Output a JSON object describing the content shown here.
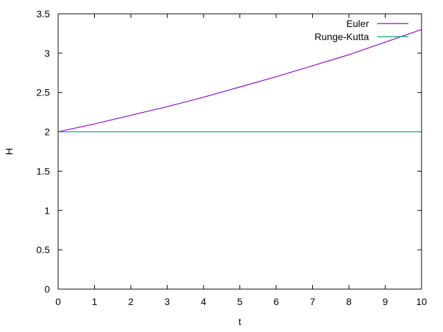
{
  "chart_data": {
    "type": "line",
    "title": "",
    "xlabel": "t",
    "ylabel": "H",
    "xlim": [
      0,
      10
    ],
    "ylim": [
      0,
      3.5
    ],
    "grid": false,
    "legend_position": "top-right",
    "x_ticks": [
      "0",
      "1",
      "2",
      "3",
      "4",
      "5",
      "6",
      "7",
      "8",
      "9",
      "10"
    ],
    "y_ticks": [
      "0",
      "0.5",
      "1",
      "1.5",
      "2",
      "2.5",
      "3",
      "3.5"
    ],
    "x": [
      0,
      1,
      2,
      3,
      4,
      5,
      6,
      7,
      8,
      9,
      10
    ],
    "series": [
      {
        "name": "Euler",
        "color": "#9400d3",
        "values": [
          2.0,
          2.1,
          2.21,
          2.32,
          2.44,
          2.57,
          2.7,
          2.84,
          2.98,
          3.14,
          3.3
        ]
      },
      {
        "name": "Runge-Kutta",
        "color": "#009e73",
        "values": [
          2.0,
          2.0,
          2.0,
          2.0,
          2.0,
          2.0,
          2.0,
          2.0,
          2.0,
          2.0,
          2.0
        ]
      }
    ]
  }
}
